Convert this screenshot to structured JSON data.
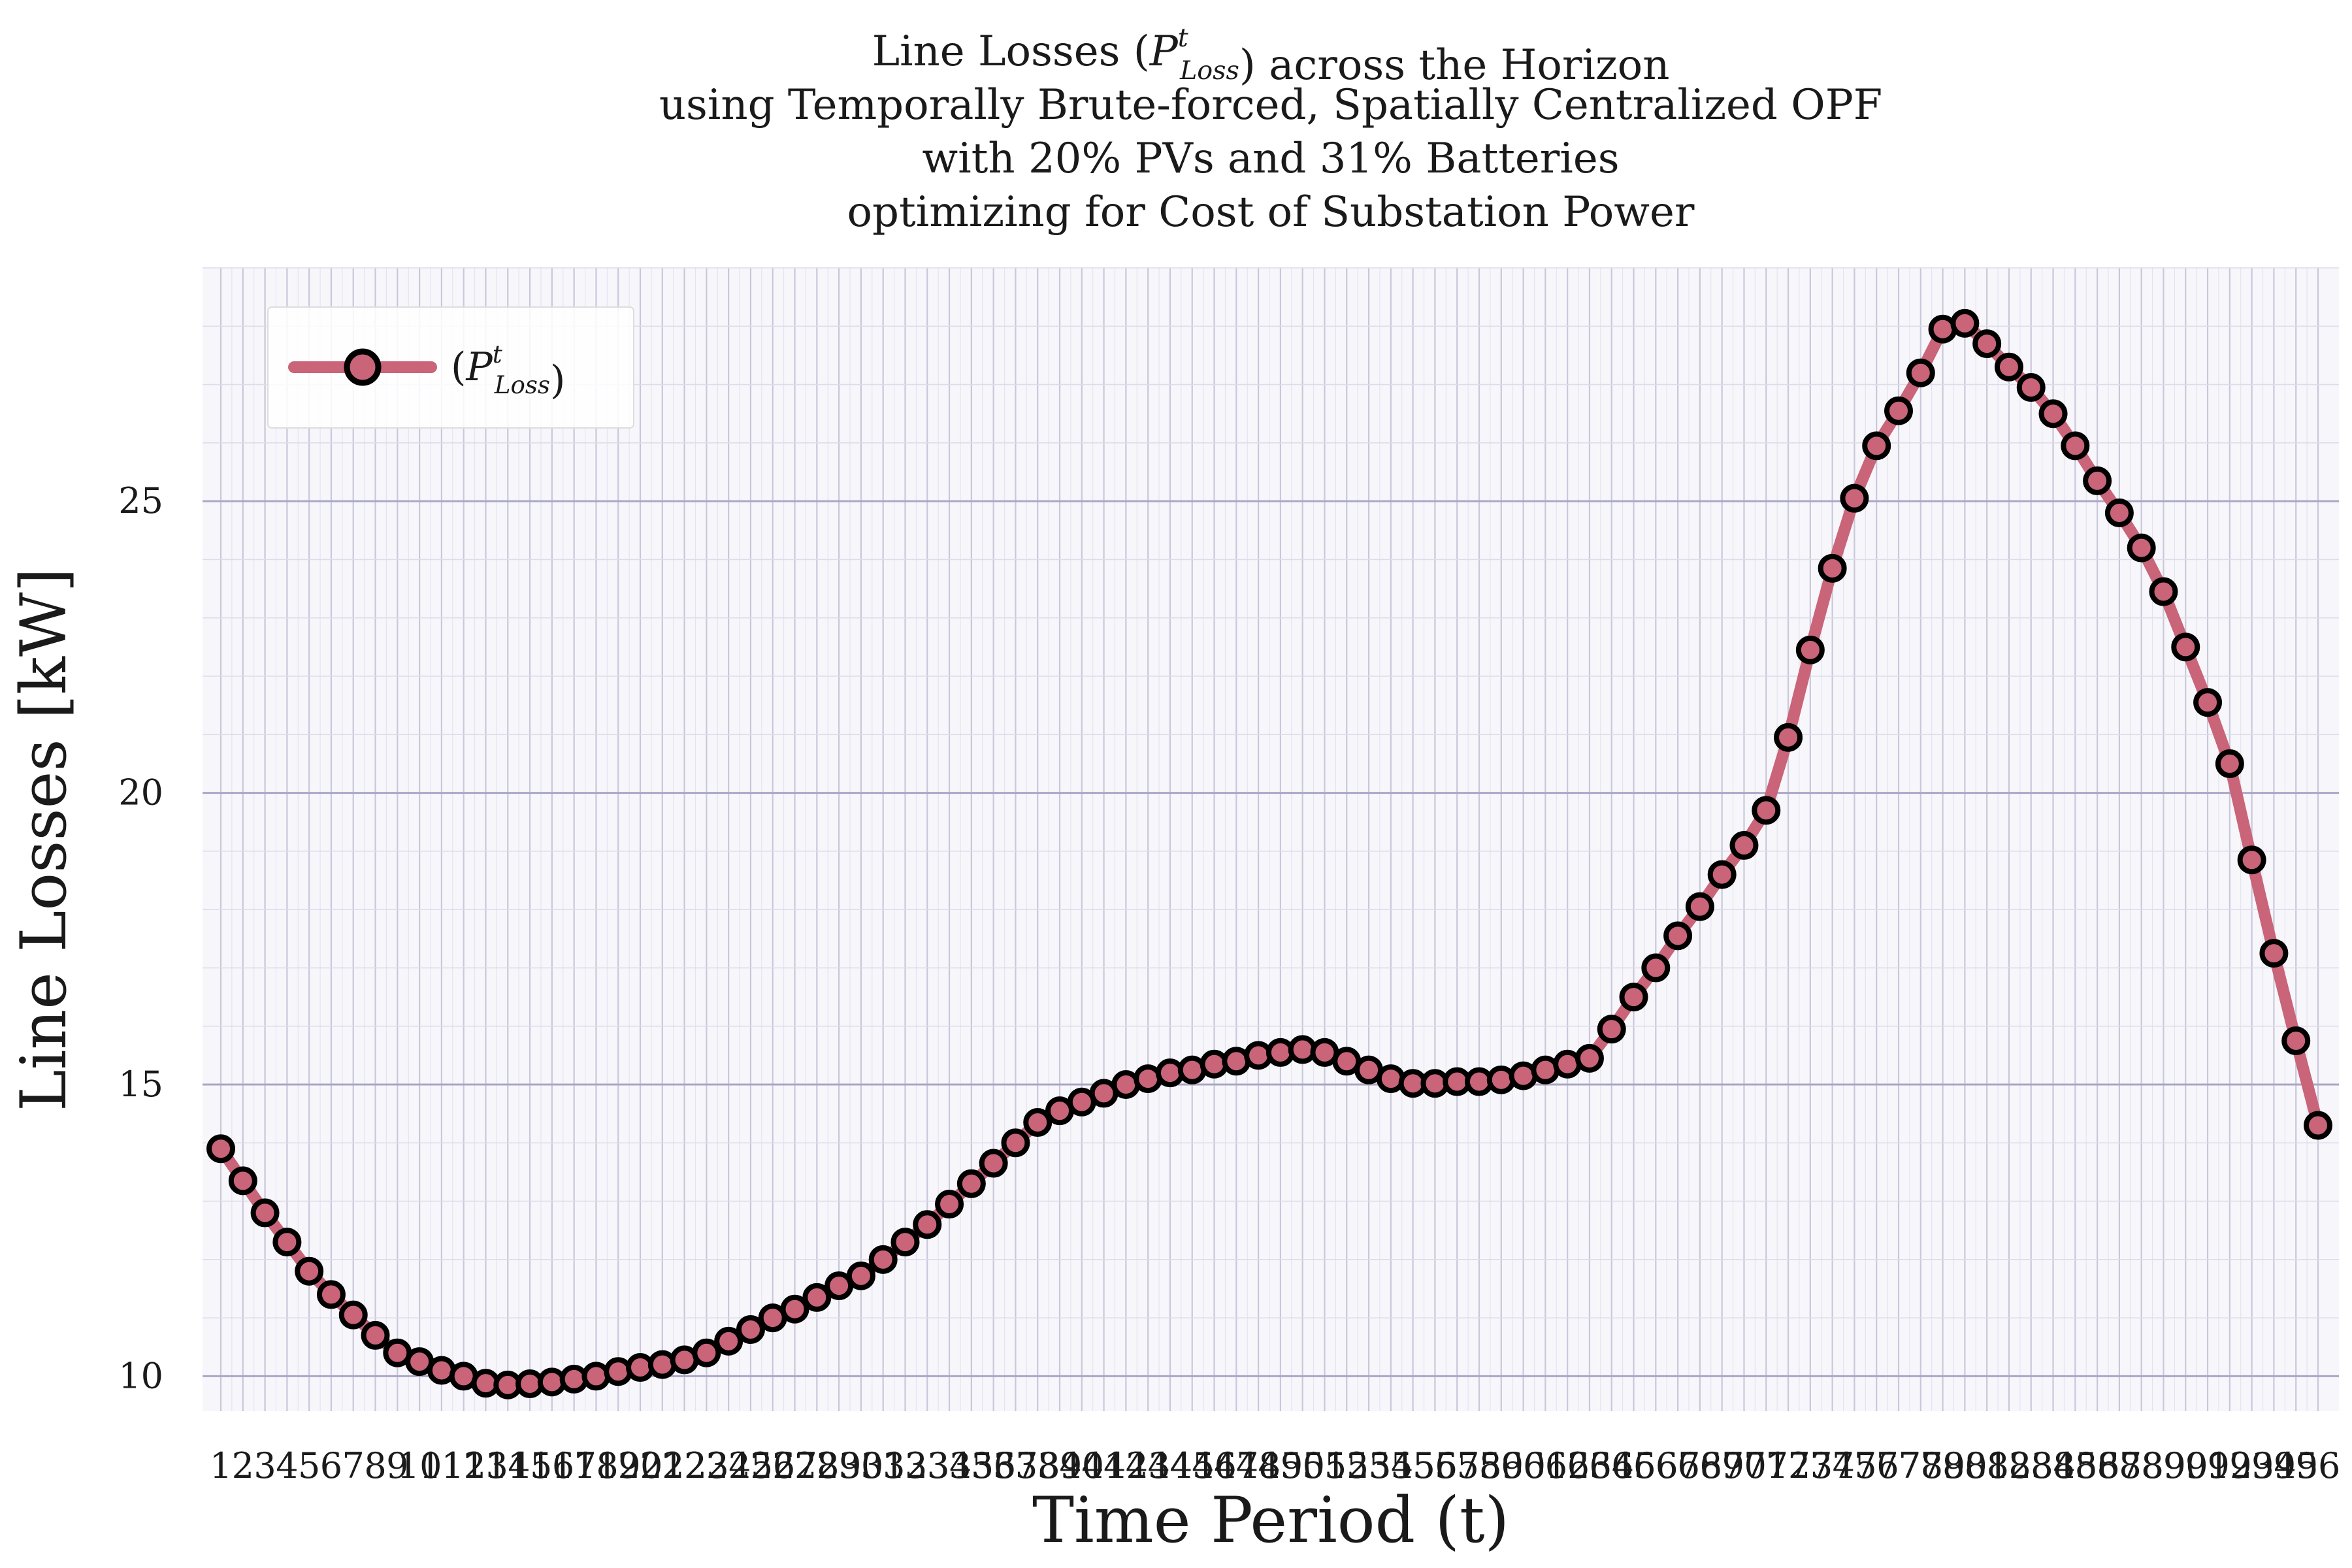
{
  "chart_data": {
    "type": "line",
    "title_lines": [
      "Line Losses (P^t_Loss) across the Horizon",
      "using Temporally Brute-forced, Spatially Centralized OPF",
      "with 20% PVs and 31% Batteries",
      "optimizing for Cost of Substation Power"
    ],
    "xlabel": "Time Period (t)",
    "ylabel": "Line Losses [kW]",
    "ylim": [
      9.4,
      29.0
    ],
    "yticks": [
      10,
      15,
      20,
      25
    ],
    "grid": true,
    "legend_position": "top-left",
    "series": [
      {
        "name": "(P^t_Loss)",
        "color": "#c96479",
        "x": [
          1,
          2,
          3,
          4,
          5,
          6,
          7,
          8,
          9,
          10,
          11,
          12,
          13,
          14,
          15,
          16,
          17,
          18,
          19,
          20,
          21,
          22,
          23,
          24,
          25,
          26,
          27,
          28,
          29,
          30,
          31,
          32,
          33,
          34,
          35,
          36,
          37,
          38,
          39,
          40,
          41,
          42,
          43,
          44,
          45,
          46,
          47,
          48,
          49,
          50,
          51,
          52,
          53,
          54,
          55,
          56,
          57,
          58,
          59,
          60,
          61,
          62,
          63,
          64,
          65,
          66,
          67,
          68,
          69,
          70,
          71,
          72,
          73,
          74,
          75,
          76,
          77,
          78,
          79,
          80,
          81,
          82,
          83,
          84,
          85,
          86,
          87,
          88,
          89,
          90,
          91,
          92,
          93,
          94,
          95,
          96
        ],
        "values": [
          13.9,
          13.35,
          12.8,
          12.3,
          11.8,
          11.4,
          11.05,
          10.7,
          10.4,
          10.25,
          10.1,
          10.0,
          9.88,
          9.85,
          9.87,
          9.9,
          9.95,
          10.0,
          10.08,
          10.15,
          10.2,
          10.28,
          10.4,
          10.6,
          10.8,
          11.0,
          11.15,
          11.35,
          11.55,
          11.72,
          12.0,
          12.3,
          12.6,
          12.95,
          13.3,
          13.65,
          14.0,
          14.35,
          14.55,
          14.7,
          14.85,
          15.0,
          15.1,
          15.2,
          15.25,
          15.35,
          15.4,
          15.5,
          15.55,
          15.6,
          15.55,
          15.4,
          15.25,
          15.1,
          15.02,
          15.02,
          15.05,
          15.05,
          15.08,
          15.15,
          15.25,
          15.35,
          15.45,
          15.95,
          16.5,
          17.0,
          17.55,
          18.05,
          18.6,
          19.1,
          19.7,
          20.95,
          22.45,
          23.85,
          25.05,
          25.95,
          26.55,
          27.2,
          27.95,
          28.05,
          27.7,
          27.3,
          26.95,
          26.5,
          25.95,
          25.35,
          24.8,
          24.2,
          23.45,
          22.5,
          21.55,
          20.5,
          18.85,
          17.25,
          15.75,
          14.3
        ]
      }
    ]
  }
}
